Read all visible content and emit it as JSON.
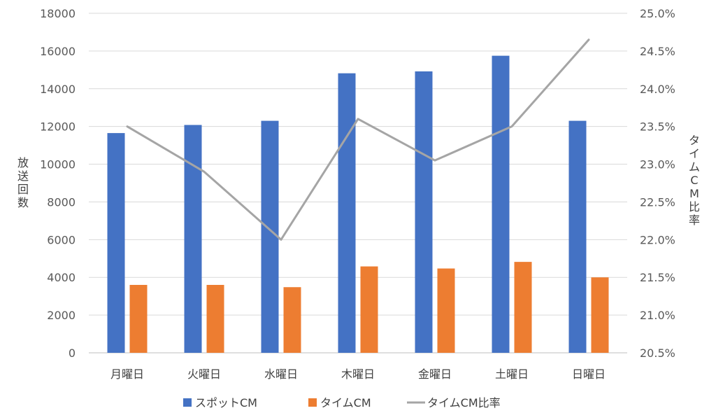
{
  "chart_data": {
    "type": "bar",
    "categories": [
      "月曜日",
      "火曜日",
      "水曜日",
      "木曜日",
      "金曜日",
      "土曜日",
      "日曜日"
    ],
    "series": [
      {
        "name": "スポットCM",
        "kind": "bar",
        "axis": "left",
        "color": "#4472C4",
        "values": [
          11650,
          12080,
          12300,
          14820,
          14920,
          15750,
          12300
        ]
      },
      {
        "name": "タイムCM",
        "kind": "bar",
        "axis": "left",
        "color": "#ED7D31",
        "values": [
          3600,
          3600,
          3480,
          4580,
          4470,
          4820,
          4000
        ]
      },
      {
        "name": "タイムCM比率",
        "kind": "line",
        "axis": "right",
        "color": "#A5A5A5",
        "values": [
          23.5,
          22.9,
          22.0,
          23.6,
          23.05,
          23.5,
          24.65
        ]
      }
    ],
    "left_axis": {
      "title": "放送回数",
      "min": 0,
      "max": 18000,
      "step": 2000,
      "tick_labels": [
        "0",
        "2000",
        "4000",
        "6000",
        "8000",
        "10000",
        "12000",
        "14000",
        "16000",
        "18000"
      ]
    },
    "right_axis": {
      "title": "タイムCM比率",
      "min": 20.5,
      "max": 25.0,
      "step": 0.5,
      "tick_labels": [
        "20.5%",
        "21.0%",
        "21.5%",
        "22.0%",
        "22.5%",
        "23.0%",
        "23.5%",
        "24.0%",
        "24.5%",
        "25.0%"
      ]
    },
    "gridlines": true,
    "legend_position": "bottom",
    "colors": {
      "grid": "#D9D9D9",
      "axis": "#BFBFBF"
    }
  }
}
